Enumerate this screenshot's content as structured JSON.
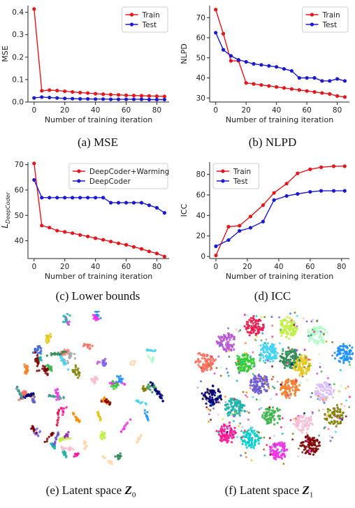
{
  "charts": {
    "colors": {
      "red": "#e8141c",
      "blue": "#1a1ad6"
    },
    "chart_data": [
      {
        "id": "a",
        "type": "line",
        "ylabel": "MSE",
        "xlabel": "Number of training iteration",
        "xlim": [
          -4,
          88
        ],
        "ylim": [
          0,
          0.43
        ],
        "xticks": [
          0,
          20,
          40,
          60,
          80
        ],
        "yticks": [
          0.0,
          0.1,
          0.2,
          0.3,
          0.4
        ],
        "ytick_labels": [
          "0.0",
          "0.1",
          "0.2",
          "0.3",
          "0.4"
        ],
        "legend": "top-right",
        "series": [
          {
            "name": "Train",
            "color": "red",
            "x": [
              0,
              5,
              10,
              15,
              20,
              25,
              30,
              35,
              40,
              45,
              50,
              55,
              60,
              65,
              70,
              75,
              80,
              85
            ],
            "y": [
              0.415,
              0.05,
              0.053,
              0.051,
              0.048,
              0.045,
              0.042,
              0.04,
              0.037,
              0.035,
              0.033,
              0.032,
              0.03,
              0.029,
              0.028,
              0.027,
              0.026,
              0.025
            ]
          },
          {
            "name": "Test",
            "color": "blue",
            "x": [
              0,
              5,
              10,
              15,
              20,
              25,
              30,
              35,
              40,
              45,
              50,
              55,
              60,
              65,
              70,
              75,
              80,
              85
            ],
            "y": [
              0.018,
              0.022,
              0.02,
              0.018,
              0.016,
              0.015,
              0.014,
              0.014,
              0.013,
              0.013,
              0.012,
              0.012,
              0.012,
              0.012,
              0.012,
              0.011,
              0.011,
              0.011
            ]
          }
        ]
      },
      {
        "id": "b",
        "type": "line",
        "ylabel": "NLPD",
        "xlabel": "Number of training iteration",
        "xlim": [
          -4,
          88
        ],
        "ylim": [
          28,
          76
        ],
        "xticks": [
          0,
          20,
          40,
          60,
          80
        ],
        "yticks": [
          30,
          40,
          50,
          60,
          70
        ],
        "ytick_labels": [
          "30",
          "40",
          "50",
          "60",
          "70"
        ],
        "legend": "top-right",
        "series": [
          {
            "name": "Train",
            "color": "red",
            "x": [
              0,
              5,
              10,
              15,
              20,
              25,
              30,
              35,
              40,
              45,
              50,
              55,
              60,
              65,
              70,
              75,
              80,
              85
            ],
            "y": [
              74.0,
              62.0,
              48.5,
              48.5,
              37.5,
              37.0,
              36.5,
              36.0,
              35.5,
              35.0,
              34.5,
              34.0,
              33.5,
              33.0,
              32.5,
              32.0,
              31.0,
              30.5
            ]
          },
          {
            "name": "Test",
            "color": "blue",
            "x": [
              0,
              5,
              10,
              15,
              20,
              25,
              30,
              35,
              40,
              45,
              50,
              55,
              60,
              65,
              70,
              75,
              80,
              85
            ],
            "y": [
              62.5,
              54.0,
              51.0,
              49.0,
              48.0,
              47.0,
              46.5,
              46.0,
              45.5,
              44.5,
              43.5,
              40.0,
              40.0,
              40.0,
              38.5,
              38.5,
              39.5,
              38.5
            ]
          }
        ]
      },
      {
        "id": "c",
        "type": "line",
        "ylabel": "L",
        "ylabel_sub": "DeepCoder",
        "xlabel": "Number of training iteration",
        "xlim": [
          -4,
          88
        ],
        "ylim": [
          33,
          71
        ],
        "xticks": [
          0,
          20,
          40,
          60,
          80
        ],
        "yticks": [
          40,
          50,
          60,
          70
        ],
        "ytick_labels": [
          "40",
          "50",
          "60",
          "70"
        ],
        "legend": "top-right",
        "series": [
          {
            "name": "DeepCoder+Warming",
            "color": "red",
            "x": [
              0,
              5,
              10,
              15,
              20,
              25,
              30,
              35,
              40,
              45,
              50,
              55,
              60,
              65,
              70,
              75,
              80,
              85
            ],
            "y": [
              70.5,
              46.0,
              45.2,
              44.0,
              43.5,
              43.0,
              42.3,
              41.7,
              41.0,
              40.4,
              39.7,
              39.0,
              38.4,
              37.6,
              36.8,
              35.8,
              35.0,
              33.8
            ]
          },
          {
            "name": "DeepCoder",
            "color": "blue",
            "x": [
              0,
              5,
              10,
              15,
              20,
              25,
              30,
              35,
              40,
              45,
              50,
              55,
              60,
              65,
              70,
              75,
              80,
              85
            ],
            "y": [
              64.0,
              57.0,
              57.0,
              57.0,
              57.0,
              57.0,
              57.0,
              57.0,
              57.0,
              57.0,
              55.0,
              55.0,
              55.0,
              55.0,
              55.0,
              54.0,
              53.0,
              51.0
            ]
          }
        ]
      },
      {
        "id": "d",
        "type": "line",
        "ylabel": "ICC",
        "xlabel": "Number of training iteration",
        "xlim": [
          -4,
          85
        ],
        "ylim": [
          -2,
          92
        ],
        "xticks": [
          0,
          20,
          40,
          60,
          80
        ],
        "yticks": [
          0,
          20,
          40,
          60,
          80
        ],
        "ytick_labels": [
          "0",
          "20",
          "40",
          "60",
          "80"
        ],
        "legend": "top-left",
        "series": [
          {
            "name": "Train",
            "color": "red",
            "x": [
              0,
              8,
              15,
              22,
              30,
              37,
              45,
              52,
              60,
              67,
              75,
              82
            ],
            "y": [
              1,
              29,
              30,
              39,
              50,
              62,
              71,
              81,
              85,
              87,
              88,
              88
            ]
          },
          {
            "name": "Test",
            "color": "blue",
            "x": [
              0,
              8,
              15,
              22,
              30,
              37,
              45,
              52,
              60,
              67,
              75,
              82
            ],
            "y": [
              10,
              16,
              25,
              28,
              34,
              55,
              59,
              61,
              63,
              64,
              64,
              64
            ]
          }
        ]
      },
      {
        "id": "e",
        "type": "scatter",
        "note": "t-SNE style cluster visualisation"
      },
      {
        "id": "f",
        "type": "scatter",
        "note": "t-SNE style cluster visualisation"
      }
    ]
  },
  "captions": {
    "a": "(a) MSE",
    "b": "(b) NLPD",
    "c": "(c) Lower bounds",
    "d": "(d) ICC",
    "e_prefix": "(e) Latent space ",
    "e_sym": "Z",
    "e_sub": "0",
    "f_prefix": "(f) Latent space ",
    "f_sym": "Z",
    "f_sub": "1"
  }
}
